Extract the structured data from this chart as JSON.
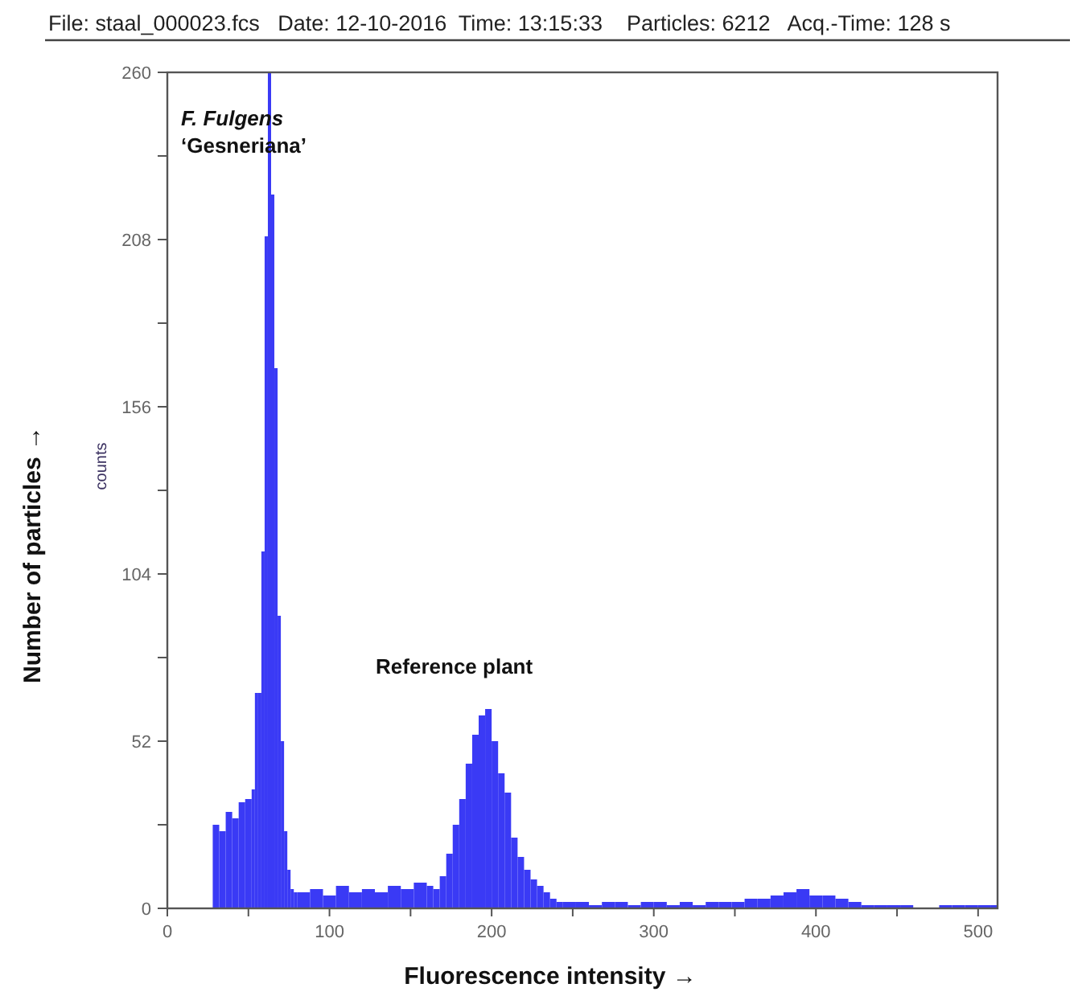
{
  "chart_data": {
    "type": "histogram",
    "title": "File: staal_000023.fcs   Date: 12-10-2016  Time: 13:15:33    Particles: 6212   Acq.-Time: 128 s",
    "xlabel": "Fluorescence intensity →",
    "ylabel": "Number of particles →",
    "annotations": [
      "counts",
      {
        "text": "F. Fulgens\n‘Gesneriana’",
        "x": 63,
        "y": 260
      },
      {
        "text": "Reference plant",
        "x": 198,
        "y": 62
      }
    ],
    "color": "#3a3af5",
    "bins": [
      28,
      32,
      36,
      40,
      44,
      48,
      52,
      54,
      56,
      58,
      60,
      62,
      64,
      66,
      68,
      70,
      72,
      74,
      76,
      78,
      80,
      88,
      96,
      104,
      112,
      120,
      128,
      136,
      144,
      152,
      160,
      164,
      168,
      172,
      176,
      180,
      184,
      188,
      192,
      196,
      200,
      204,
      208,
      212,
      216,
      220,
      224,
      228,
      232,
      236,
      240,
      244,
      252,
      260,
      268,
      276,
      284,
      292,
      300,
      308,
      316,
      324,
      332,
      340,
      348,
      356,
      364,
      372,
      380,
      388,
      396,
      404,
      412,
      420,
      428,
      436,
      444,
      452,
      460,
      476,
      484,
      492,
      500,
      508,
      512
    ],
    "values": [
      26,
      24,
      30,
      28,
      33,
      34,
      37,
      67,
      67,
      111,
      209,
      260,
      222,
      168,
      91,
      52,
      24,
      12,
      6,
      5,
      5,
      6,
      4,
      7,
      5,
      6,
      5,
      7,
      6,
      8,
      7,
      6,
      10,
      17,
      26,
      34,
      45,
      54,
      60,
      62,
      52,
      42,
      36,
      22,
      16,
      12,
      9,
      7,
      5,
      3,
      2,
      2,
      2,
      1,
      2,
      2,
      1,
      2,
      2,
      1,
      2,
      1,
      2,
      2,
      2,
      3,
      3,
      4,
      5,
      6,
      4,
      4,
      3,
      2,
      1,
      1,
      1,
      1,
      0,
      1,
      1,
      1,
      1,
      1
    ],
    "xlim": [
      0,
      512
    ],
    "xticks": [
      0,
      {
        "value": 50,
        "label": null
      },
      100,
      {
        "value": 150,
        "label": null
      },
      200,
      {
        "value": 250,
        "label": null
      },
      300,
      {
        "value": 350,
        "label": null
      },
      400,
      {
        "value": 450,
        "label": null
      },
      500
    ],
    "ylim": [
      0,
      260
    ],
    "yticks": [
      0,
      {
        "value": 26,
        "label": null
      },
      52,
      {
        "value": 78,
        "label": null
      },
      104,
      {
        "value": 130,
        "label": null
      },
      156,
      {
        "value": 182,
        "label": null
      },
      208,
      {
        "value": 234,
        "label": null
      },
      260
    ],
    "grid": false
  }
}
